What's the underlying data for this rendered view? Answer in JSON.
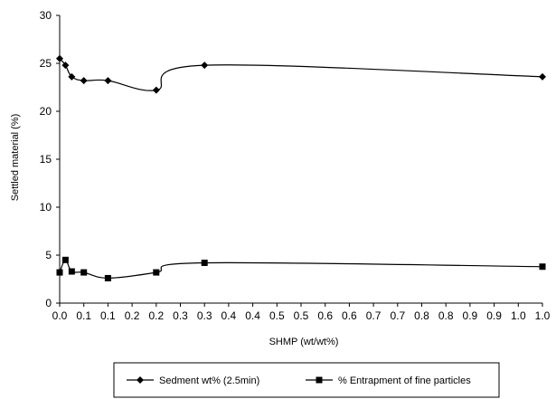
{
  "chart_data": {
    "type": "line",
    "title": "",
    "xlabel": "SHMP (wt/wt%)",
    "ylabel": "Settled material (%)",
    "xlim": [
      0,
      1.0
    ],
    "ylim": [
      0,
      30
    ],
    "xticks": [
      "0.0",
      "0.1",
      "0.1",
      "0.2",
      "0.2",
      "0.3",
      "0.3",
      "0.4",
      "0.4",
      "0.5",
      "0.5",
      "0.6",
      "0.6",
      "0.7",
      "0.7",
      "0.8",
      "0.8",
      "0.9",
      "0.9",
      "1.0",
      "1.0"
    ],
    "yticks": [
      "0",
      "5",
      "10",
      "15",
      "20",
      "25",
      "30"
    ],
    "grid": false,
    "legend_position": "bottom",
    "series": [
      {
        "name": "Sedment wt% (2.5min)",
        "marker": "diamond",
        "color": "#000000",
        "x": [
          0.0,
          0.012,
          0.025,
          0.05,
          0.1,
          0.2,
          0.3,
          1.0
        ],
        "y": [
          25.5,
          24.8,
          23.6,
          23.2,
          23.2,
          22.2,
          24.8,
          23.6
        ]
      },
      {
        "name": "% Entrapment of fine particles",
        "marker": "square",
        "color": "#000000",
        "x": [
          0.0,
          0.012,
          0.025,
          0.05,
          0.1,
          0.2,
          0.3,
          1.0
        ],
        "y": [
          3.2,
          4.5,
          3.3,
          3.2,
          2.6,
          3.2,
          4.2,
          3.8
        ]
      }
    ]
  }
}
